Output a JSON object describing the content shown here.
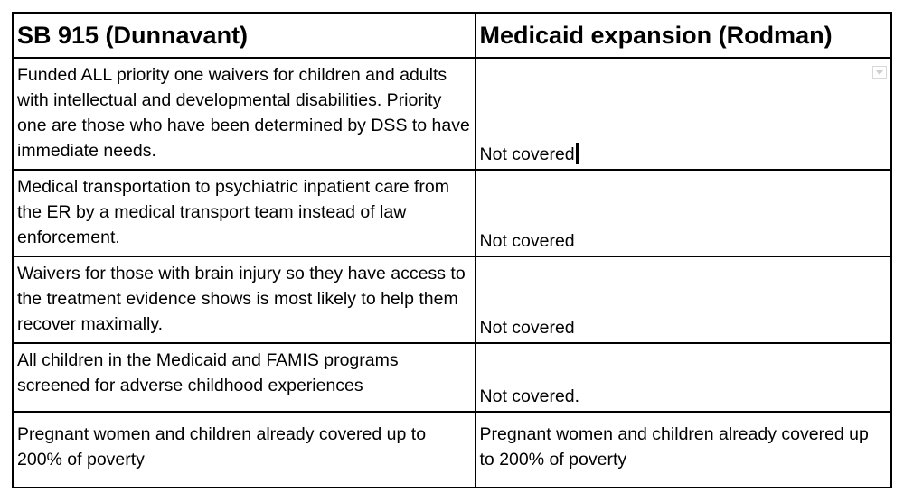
{
  "table": {
    "headers": [
      "SB 915 (Dunnavant)",
      "Medicaid expansion (Rodman)"
    ],
    "rows": [
      {
        "left": "Funded ALL priority one waivers for children and adults with intellectual and developmental disabilities. Priority one are those who have been determined by DSS to have immediate needs.",
        "right": "Not covered"
      },
      {
        "left": "Medical transportation to psychiatric inpatient care from the ER by a medical transport team instead of law enforcement.",
        "right": "Not covered"
      },
      {
        "left": "Waivers for those with brain injury so they have access to the treatment evidence shows is most likely to help them recover maximally.",
        "right": "Not covered"
      },
      {
        "left": "All children in the Medicaid and FAMIS programs screened for adverse childhood experiences",
        "right": "Not covered."
      },
      {
        "left": "Pregnant women and children already covered up to 200% of poverty",
        "right": "Pregnant women and children already covered up to 200% of poverty"
      }
    ]
  },
  "icons": {
    "dropdown": "chevron-down-icon",
    "cursor": "text-cursor"
  }
}
